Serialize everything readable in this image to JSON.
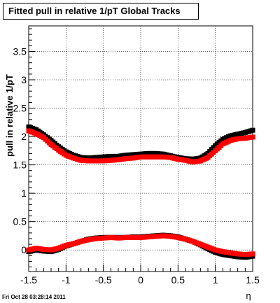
{
  "title": "Fitted pull in relative 1/pT  Global Tracks",
  "footer": "Fri Oct 28 03:28:14 2011",
  "chart_data": {
    "type": "scatter",
    "xlabel": "η",
    "ylabel": "pull in relative 1/pT",
    "xlim": [
      -1.5,
      1.5
    ],
    "ylim": [
      -0.38,
      3.95
    ],
    "grid": true,
    "x_ticks": [
      {
        "value": -1.5,
        "label": "-1.5"
      },
      {
        "value": -1,
        "label": "-1"
      },
      {
        "value": -0.5,
        "label": "-0.5"
      },
      {
        "value": 0,
        "label": "0"
      },
      {
        "value": 0.5,
        "label": "0.5"
      },
      {
        "value": 1,
        "label": "1"
      },
      {
        "value": 1.5,
        "label": "1.5"
      }
    ],
    "y_ticks": [
      {
        "value": 0,
        "label": "0"
      },
      {
        "value": 0.5,
        "label": "0.5"
      },
      {
        "value": 1,
        "label": "1"
      },
      {
        "value": 1.5,
        "label": "1.5"
      },
      {
        "value": 2,
        "label": "2"
      },
      {
        "value": 2.5,
        "label": "2.5"
      },
      {
        "value": 3,
        "label": "3"
      },
      {
        "value": 3.5,
        "label": "3.5"
      }
    ],
    "x": [
      -1.5,
      -1.4,
      -1.3,
      -1.2,
      -1.1,
      -1.0,
      -0.9,
      -0.8,
      -0.7,
      -0.6,
      -0.5,
      -0.4,
      -0.3,
      -0.2,
      -0.1,
      0.0,
      0.1,
      0.2,
      0.3,
      0.4,
      0.5,
      0.6,
      0.7,
      0.8,
      0.9,
      1.0,
      1.1,
      1.2,
      1.3,
      1.4,
      1.5
    ],
    "series": [
      {
        "color": "#000000",
        "values": [
          2.17,
          2.12,
          2.03,
          1.93,
          1.82,
          1.73,
          1.67,
          1.63,
          1.62,
          1.63,
          1.64,
          1.65,
          1.65,
          1.67,
          1.68,
          1.69,
          1.7,
          1.7,
          1.69,
          1.66,
          1.63,
          1.61,
          1.6,
          1.62,
          1.7,
          1.84,
          1.95,
          2.01,
          2.04,
          2.07,
          2.11
        ]
      },
      {
        "color": "#ff0000",
        "values": [
          2.1,
          2.05,
          1.98,
          1.86,
          1.76,
          1.67,
          1.62,
          1.58,
          1.57,
          1.57,
          1.57,
          1.58,
          1.59,
          1.61,
          1.62,
          1.64,
          1.64,
          1.64,
          1.64,
          1.63,
          1.6,
          1.58,
          1.55,
          1.57,
          1.63,
          1.75,
          1.87,
          1.93,
          1.96,
          1.97,
          1.99
        ]
      },
      {
        "color": "#000000",
        "values": [
          -0.03,
          0.0,
          -0.02,
          -0.03,
          0.01,
          0.07,
          0.11,
          0.15,
          0.19,
          0.21,
          0.22,
          0.22,
          0.22,
          0.22,
          0.23,
          0.23,
          0.24,
          0.25,
          0.26,
          0.25,
          0.23,
          0.19,
          0.15,
          0.09,
          0.02,
          -0.04,
          -0.08,
          -0.1,
          -0.12,
          -0.13,
          -0.11
        ]
      },
      {
        "color": "#ff0000",
        "values": [
          0.0,
          0.03,
          0.01,
          0.0,
          0.03,
          0.08,
          0.11,
          0.15,
          0.18,
          0.2,
          0.21,
          0.22,
          0.21,
          0.22,
          0.22,
          0.22,
          0.23,
          0.24,
          0.25,
          0.24,
          0.22,
          0.19,
          0.15,
          0.1,
          0.05,
          0.0,
          -0.03,
          -0.05,
          -0.07,
          -0.08,
          -0.07
        ]
      }
    ]
  }
}
